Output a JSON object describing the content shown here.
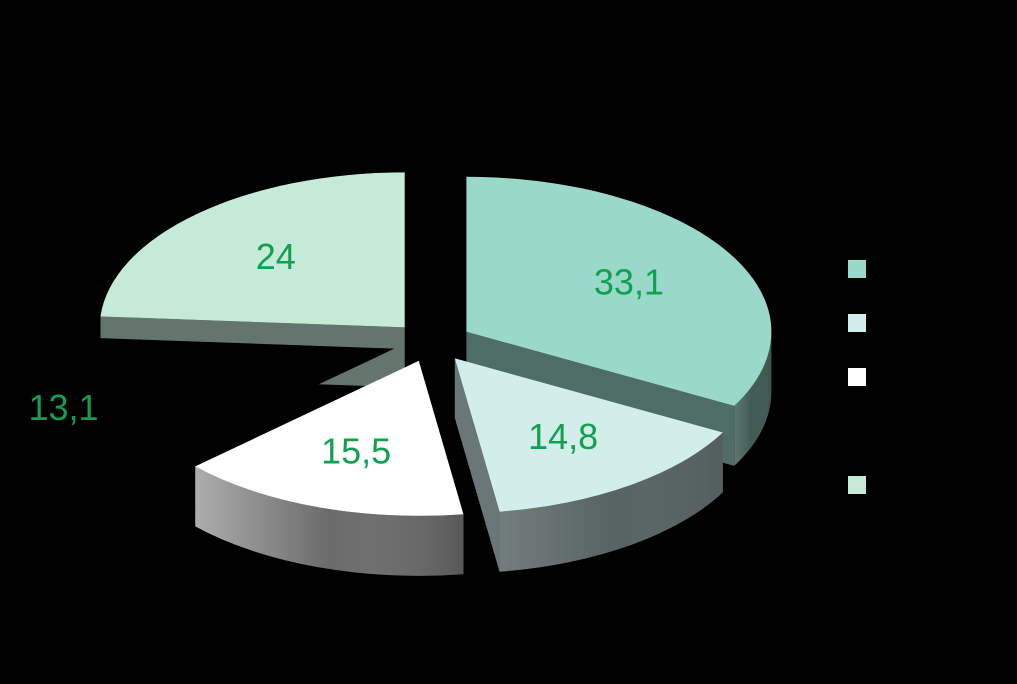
{
  "chart_data": {
    "type": "pie",
    "slices": [
      {
        "value": 33.1,
        "label": "33,1",
        "color": "#9ad9c9"
      },
      {
        "value": 14.8,
        "label": "14,8",
        "color": "#d2eeeb"
      },
      {
        "value": 15.5,
        "label": "15,5",
        "color": "#ffffff"
      },
      {
        "value": 13.1,
        "label": "13,1",
        "color": "#000000"
      },
      {
        "value": 24,
        "label": "24",
        "color": "#c6ead8"
      }
    ],
    "legend": {
      "placement": "right",
      "entries": [
        "",
        "",
        "",
        "",
        ""
      ]
    },
    "label_color": "#10a050",
    "exploded": true,
    "three_d": true
  }
}
